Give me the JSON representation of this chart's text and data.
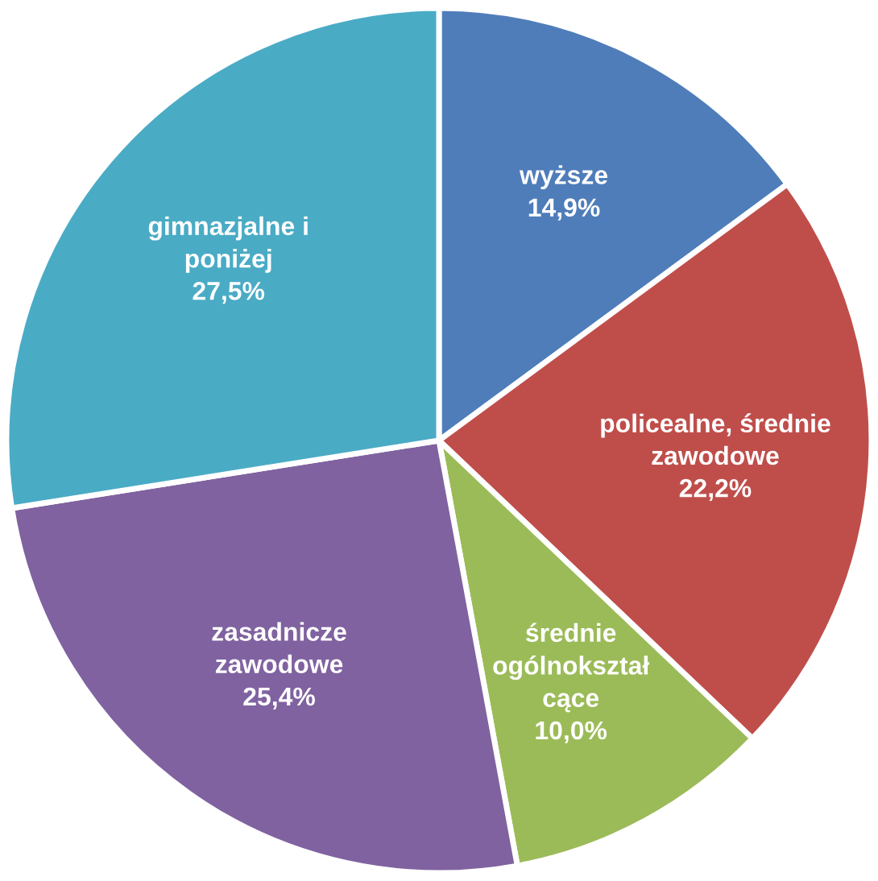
{
  "chart_data": {
    "type": "pie",
    "categories": [
      "wyższe",
      "policealne, średnie\nzawodowe",
      "średnie\nogólnokształ\ncące",
      "zasadnicze\nzawodowe",
      "gimnazjalne i\nponiżej"
    ],
    "values": [
      14.9,
      22.2,
      10.0,
      25.4,
      27.5
    ],
    "value_labels": [
      "14,9%",
      "22,2%",
      "10,0%",
      "25,4%",
      "27,5%"
    ],
    "colors": [
      "#4f7dba",
      "#bf4e4b",
      "#9bbb58",
      "#8062a0",
      "#4aabc5"
    ]
  }
}
